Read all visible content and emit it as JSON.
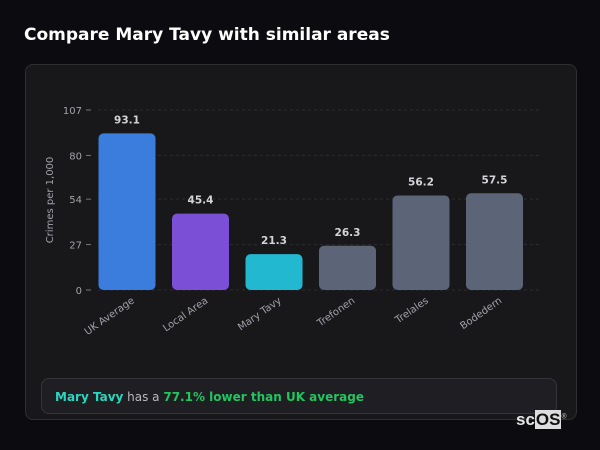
{
  "page": {
    "title": "Compare Mary Tavy with similar areas"
  },
  "summary": {
    "area": "Mary Tavy",
    "middle": " has a ",
    "comparison": "77.1% lower than UK average"
  },
  "logo": {
    "text": "scOS"
  },
  "chart_data": {
    "type": "bar",
    "ylabel": "Crimes per 1,000",
    "xlabel": "",
    "ylim": [
      0,
      107
    ],
    "yticks": [
      0,
      27,
      54,
      80,
      107
    ],
    "grid": true,
    "categories": [
      "UK Average",
      "Local Area",
      "Mary Tavy",
      "Trefonen",
      "Trelales",
      "Bodedern"
    ],
    "values": [
      93.1,
      45.4,
      21.3,
      26.3,
      56.2,
      57.5
    ],
    "colors": [
      "#3b7ddd",
      "#7b4fd6",
      "#22b8cf",
      "#5b6577",
      "#5b6577",
      "#5b6577"
    ]
  }
}
